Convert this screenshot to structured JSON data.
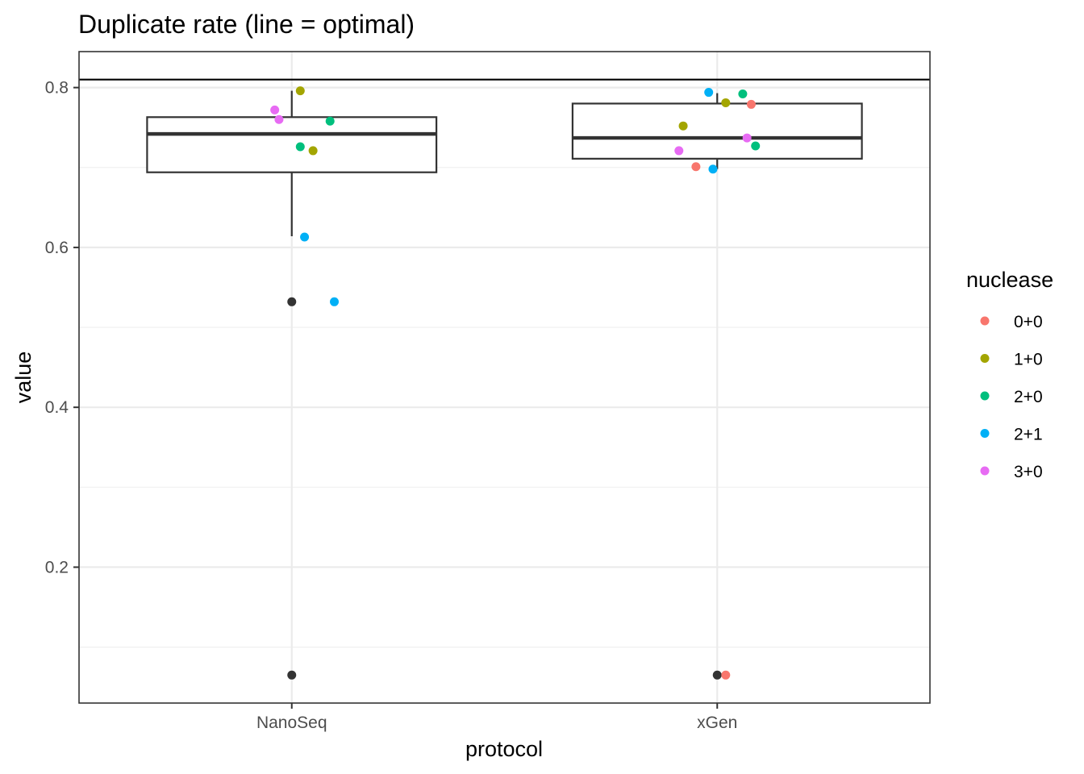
{
  "chart_data": {
    "type": "box",
    "title": "Duplicate rate (line = optimal)",
    "xlabel": "protocol",
    "ylabel": "value",
    "categories": [
      "NanoSeq",
      "xGen"
    ],
    "y_ticks": [
      "0.2",
      "0.4",
      "0.6",
      "0.8"
    ],
    "y_tick_values": [
      0.2,
      0.4,
      0.6,
      0.8
    ],
    "ylim": [
      0.03,
      0.845
    ],
    "grid": true,
    "reference_line": {
      "value": 0.81
    },
    "boxes": [
      {
        "category": "NanoSeq",
        "q1": 0.694,
        "median": 0.742,
        "q3": 0.763,
        "whisker_low": 0.614,
        "whisker_high": 0.796,
        "outliers": [
          0.532,
          0.065
        ]
      },
      {
        "category": "xGen",
        "q1": 0.711,
        "median": 0.737,
        "q3": 0.78,
        "whisker_low": 0.698,
        "whisker_high": 0.793,
        "outliers": [
          0.065
        ]
      }
    ],
    "legend": {
      "title": "nuclease",
      "position": "right",
      "entries": [
        {
          "name": "0+0",
          "color": "#F8766D"
        },
        {
          "name": "1+0",
          "color": "#A3A500"
        },
        {
          "name": "2+0",
          "color": "#00BF7D"
        },
        {
          "name": "2+1",
          "color": "#00B0F6"
        },
        {
          "name": "3+0",
          "color": "#E76BF3"
        }
      ]
    },
    "outlier_color": "#333333",
    "points": [
      {
        "category": "NanoSeq",
        "jitter": 0.02,
        "value": 0.796,
        "nuclease": "1+0"
      },
      {
        "category": "NanoSeq",
        "jitter": -0.04,
        "value": 0.772,
        "nuclease": "3+0"
      },
      {
        "category": "NanoSeq",
        "jitter": -0.03,
        "value": 0.76,
        "nuclease": "3+0"
      },
      {
        "category": "NanoSeq",
        "jitter": 0.09,
        "value": 0.758,
        "nuclease": "2+0"
      },
      {
        "category": "NanoSeq",
        "jitter": 0.02,
        "value": 0.726,
        "nuclease": "2+0"
      },
      {
        "category": "NanoSeq",
        "jitter": 0.05,
        "value": 0.721,
        "nuclease": "1+0"
      },
      {
        "category": "NanoSeq",
        "jitter": 0.03,
        "value": 0.613,
        "nuclease": "2+1"
      },
      {
        "category": "NanoSeq",
        "jitter": 0.1,
        "value": 0.532,
        "nuclease": "2+1"
      },
      {
        "category": "xGen",
        "jitter": -0.02,
        "value": 0.794,
        "nuclease": "2+1"
      },
      {
        "category": "xGen",
        "jitter": 0.06,
        "value": 0.792,
        "nuclease": "2+0"
      },
      {
        "category": "xGen",
        "jitter": 0.02,
        "value": 0.781,
        "nuclease": "1+0"
      },
      {
        "category": "xGen",
        "jitter": 0.08,
        "value": 0.779,
        "nuclease": "0+0"
      },
      {
        "category": "xGen",
        "jitter": -0.08,
        "value": 0.752,
        "nuclease": "1+0"
      },
      {
        "category": "xGen",
        "jitter": 0.07,
        "value": 0.737,
        "nuclease": "3+0"
      },
      {
        "category": "xGen",
        "jitter": 0.09,
        "value": 0.727,
        "nuclease": "2+0"
      },
      {
        "category": "xGen",
        "jitter": -0.09,
        "value": 0.721,
        "nuclease": "3+0"
      },
      {
        "category": "xGen",
        "jitter": -0.05,
        "value": 0.701,
        "nuclease": "0+0"
      },
      {
        "category": "xGen",
        "jitter": -0.01,
        "value": 0.698,
        "nuclease": "2+1"
      },
      {
        "category": "xGen",
        "jitter": 0.02,
        "value": 0.065,
        "nuclease": "0+0"
      }
    ]
  }
}
